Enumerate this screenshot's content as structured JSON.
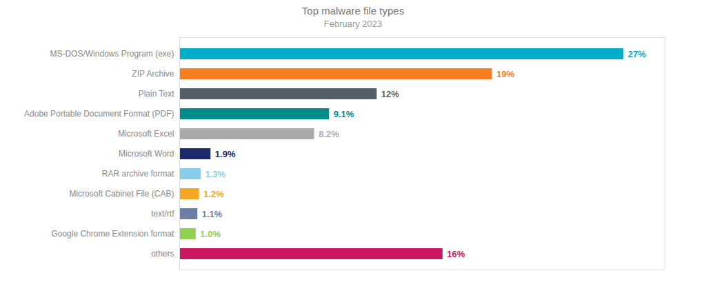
{
  "chart_data": {
    "type": "bar",
    "orientation": "horizontal",
    "title": "Top malware file types",
    "subtitle": "February 2023",
    "categories": [
      "MS-DOS/Windows Program (exe)",
      "ZIP Archive",
      "Plain Text",
      "Adobe Portable Document Format (PDF)",
      "Microsoft Excel",
      "Microsoft Word",
      "RAR archive format",
      "Microsoft Cabinet File (CAB)",
      "text/rtf",
      "Google Chrome Extension format",
      "others"
    ],
    "values": [
      27,
      19,
      12,
      9.1,
      8.2,
      1.9,
      1.3,
      1.2,
      1.1,
      1.0,
      16
    ],
    "value_labels": [
      "27%",
      "19%",
      "12%",
      "9.1%",
      "8.2%",
      "1.9%",
      "1.3%",
      "1.2%",
      "1.1%",
      "1.0%",
      "16%"
    ],
    "colors": [
      "#00AECC",
      "#F47E20",
      "#545F66",
      "#008B8B",
      "#AAAAAA",
      "#1B2A6B",
      "#87CEEB",
      "#F5A623",
      "#6B7EA6",
      "#90D050",
      "#C8175D"
    ],
    "xlim": [
      0,
      29.5
    ],
    "data_labels": true,
    "tick_labels": "y",
    "grid": false
  }
}
